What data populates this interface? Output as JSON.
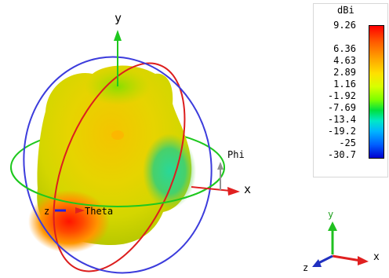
{
  "axes": {
    "y_label": "y",
    "x_label": "x",
    "z_label": "z",
    "phi_label": "Phi",
    "theta_label": "Theta"
  },
  "mini_axes": {
    "y_label": "y",
    "x_label": "x",
    "z_label": "z"
  },
  "legend": {
    "unit": "dBi",
    "ticks": [
      "9.26",
      "6.36",
      "4.63",
      "2.89",
      "1.16",
      "-1.92",
      "-7.69",
      "-13.4",
      "-19.2",
      "-25",
      "-30.7"
    ]
  },
  "colors": {
    "phi_circle": "#3c3cdc",
    "theta_circle": "#dc1e1e",
    "horizontal_circle": "#1ec81e",
    "x_axis": "#e02020",
    "y_axis": "#20c020",
    "z_axis": "#2020e0"
  }
}
